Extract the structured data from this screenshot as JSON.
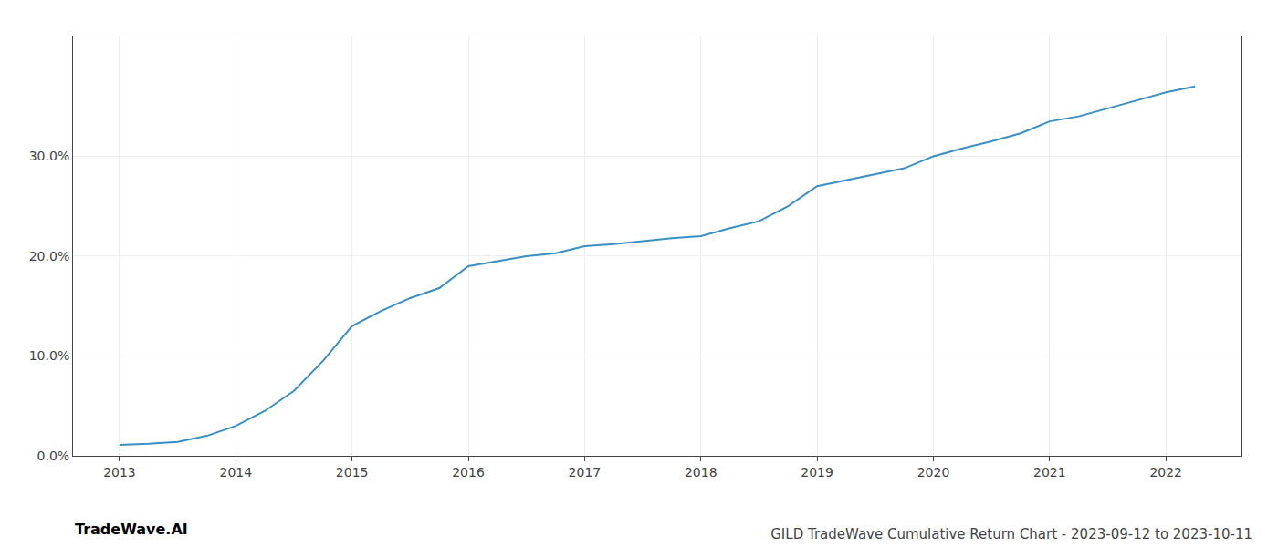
{
  "chart_data": {
    "type": "line",
    "title": "GILD TradeWave Cumulative Return Chart - 2023-09-12 to 2023-10-11",
    "annotations": [
      "TradeWave.AI"
    ],
    "x": [
      2013,
      2013.25,
      2013.5,
      2013.75,
      2014,
      2014.25,
      2014.5,
      2014.75,
      2015,
      2015.25,
      2015.5,
      2015.75,
      2016,
      2016.25,
      2016.5,
      2016.75,
      2017,
      2017.25,
      2017.5,
      2017.75,
      2018,
      2018.25,
      2018.5,
      2018.75,
      2019,
      2019.25,
      2019.5,
      2019.75,
      2020,
      2020.25,
      2020.5,
      2020.75,
      2021,
      2021.25,
      2021.5,
      2021.75,
      2022,
      2022.25
    ],
    "values": [
      0.011,
      0.012,
      0.014,
      0.02,
      0.03,
      0.045,
      0.065,
      0.095,
      0.13,
      0.145,
      0.158,
      0.168,
      0.19,
      0.195,
      0.2,
      0.203,
      0.21,
      0.212,
      0.215,
      0.218,
      0.22,
      0.228,
      0.235,
      0.25,
      0.27,
      0.276,
      0.282,
      0.288,
      0.3,
      0.308,
      0.315,
      0.323,
      0.335,
      0.34,
      0.348,
      0.356,
      0.364,
      0.37
    ],
    "color": "#3a8fc7",
    "xlim": [
      2012.6,
      2022.65
    ],
    "xticks": [
      2013,
      2014,
      2015,
      2016,
      2017,
      2018,
      2019,
      2020,
      2021,
      2022
    ],
    "ylim": [
      0.0,
      0.42
    ],
    "yticks": [
      {
        "value": 0.0,
        "label": "0.0%"
      },
      {
        "value": 0.1,
        "label": "10.0%"
      },
      {
        "value": 0.2,
        "label": "20.0%"
      },
      {
        "value": 0.3,
        "label": "30.0%"
      }
    ],
    "grid": true
  }
}
